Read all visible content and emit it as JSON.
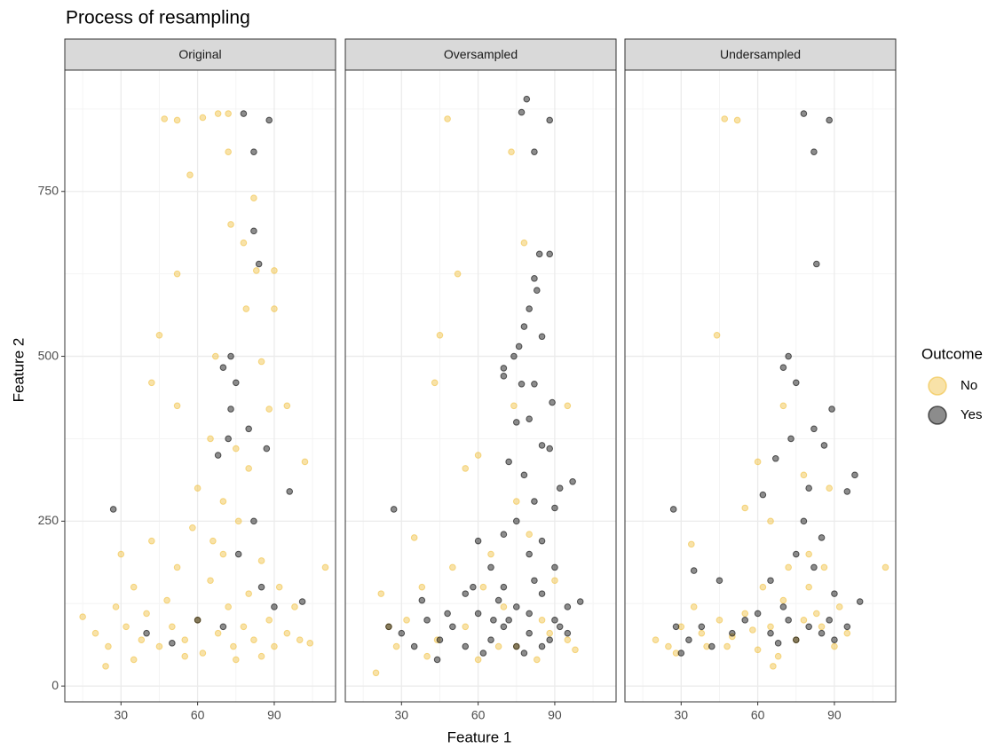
{
  "title": "Process of resampling",
  "x_label": "Feature 1",
  "y_label": "Feature 2",
  "legend_title": "Outcome",
  "chart_data": [
    {
      "type": "scatter",
      "title": "Original",
      "xlim": [
        8,
        114
      ],
      "ylim": [
        -24,
        934
      ],
      "xticks": [
        30,
        60,
        90
      ],
      "yticks": [
        0,
        250,
        500,
        750
      ],
      "grid": true,
      "series": [
        {
          "name": "No",
          "color": "#f0bf3d",
          "x": [
            47,
            52,
            62,
            68,
            72,
            72,
            57,
            73,
            82,
            78,
            83,
            90,
            52,
            79,
            90,
            45,
            42,
            85,
            67,
            95,
            88,
            52,
            65,
            75,
            80,
            60,
            70,
            102,
            110,
            15,
            20,
            25,
            28,
            30,
            32,
            35,
            38,
            40,
            42,
            45,
            48,
            50,
            52,
            55,
            58,
            60,
            62,
            65,
            68,
            70,
            72,
            74,
            76,
            78,
            80,
            82,
            85,
            88,
            90,
            92,
            95,
            98,
            100,
            104,
            35,
            55,
            75,
            85,
            24,
            66
          ],
          "y": [
            860,
            858,
            862,
            868,
            868,
            810,
            775,
            700,
            740,
            672,
            630,
            630,
            625,
            572,
            572,
            532,
            460,
            492,
            500,
            425,
            420,
            425,
            375,
            360,
            330,
            300,
            280,
            340,
            180,
            105,
            80,
            60,
            120,
            200,
            90,
            150,
            70,
            110,
            220,
            60,
            130,
            90,
            180,
            70,
            240,
            100,
            50,
            160,
            80,
            200,
            120,
            60,
            250,
            90,
            140,
            70,
            190,
            100,
            60,
            150,
            80,
            120,
            70,
            65,
            40,
            45,
            40,
            45,
            30,
            220
          ]
        },
        {
          "name": "Yes",
          "color": "#000000",
          "x": [
            78,
            88,
            82,
            82,
            84,
            73,
            70,
            75,
            73,
            80,
            72,
            87,
            96,
            27,
            68,
            76,
            85,
            60,
            40,
            90,
            101,
            82,
            50,
            70
          ],
          "y": [
            868,
            858,
            810,
            690,
            640,
            500,
            483,
            460,
            420,
            390,
            375,
            360,
            295,
            268,
            350,
            200,
            150,
            100,
            80,
            120,
            128,
            250,
            65,
            90
          ]
        }
      ]
    },
    {
      "type": "scatter",
      "title": "Oversampled",
      "xlim": [
        8,
        114
      ],
      "ylim": [
        -24,
        934
      ],
      "xticks": [
        30,
        60,
        90
      ],
      "yticks": [
        0,
        250,
        500,
        750
      ],
      "grid": true,
      "series": [
        {
          "name": "No",
          "color": "#f0bf3d",
          "x": [
            48,
            73,
            78,
            52,
            45,
            43,
            95,
            74,
            60,
            55,
            75,
            35,
            22,
            20,
            28,
            32,
            38,
            44,
            50,
            55,
            60,
            65,
            70,
            75,
            80,
            85,
            90,
            95,
            98,
            40,
            62,
            88,
            25,
            68,
            83
          ],
          "y": [
            860,
            810,
            672,
            625,
            532,
            460,
            425,
            425,
            350,
            330,
            280,
            225,
            140,
            20,
            60,
            100,
            150,
            70,
            180,
            90,
            40,
            200,
            120,
            60,
            230,
            100,
            160,
            70,
            55,
            45,
            150,
            80,
            90,
            60,
            40
          ]
        },
        {
          "name": "Yes",
          "color": "#000000",
          "x": [
            79,
            77,
            88,
            82,
            84,
            88,
            82,
            83,
            80,
            78,
            76,
            74,
            70,
            70,
            77,
            82,
            85,
            89,
            75,
            80,
            85,
            88,
            72,
            78,
            92,
            97,
            82,
            27,
            90,
            75,
            70,
            85,
            60,
            80,
            65,
            90,
            70,
            85,
            55,
            75,
            80,
            95,
            100,
            30,
            35,
            40,
            45,
            50,
            55,
            60,
            65,
            70,
            75,
            80,
            85,
            90,
            95,
            25,
            38,
            48,
            62,
            72,
            78,
            88,
            58,
            68,
            82,
            92,
            44,
            66
          ],
          "y": [
            890,
            870,
            858,
            810,
            655,
            655,
            618,
            600,
            572,
            545,
            515,
            500,
            482,
            470,
            458,
            458,
            530,
            430,
            400,
            405,
            365,
            360,
            340,
            320,
            300,
            310,
            280,
            268,
            270,
            250,
            230,
            220,
            220,
            200,
            180,
            180,
            150,
            140,
            140,
            120,
            110,
            120,
            128,
            80,
            60,
            100,
            70,
            90,
            60,
            110,
            70,
            90,
            60,
            80,
            60,
            100,
            80,
            90,
            130,
            110,
            50,
            100,
            50,
            70,
            150,
            130,
            160,
            90,
            40,
            100
          ]
        }
      ]
    },
    {
      "type": "scatter",
      "title": "Undersampled",
      "xlim": [
        8,
        114
      ],
      "ylim": [
        -24,
        934
      ],
      "xticks": [
        30,
        60,
        90
      ],
      "yticks": [
        0,
        250,
        500,
        750
      ],
      "grid": true,
      "series": [
        {
          "name": "No",
          "color": "#f0bf3d",
          "x": [
            47,
            52,
            44,
            70,
            78,
            60,
            88,
            65,
            55,
            34,
            80,
            110,
            20,
            25,
            30,
            35,
            40,
            45,
            50,
            55,
            60,
            65,
            70,
            75,
            80,
            85,
            90,
            95,
            28,
            38,
            68,
            83,
            72,
            92,
            62,
            86,
            48,
            58,
            78,
            66
          ],
          "y": [
            860,
            858,
            532,
            425,
            320,
            340,
            300,
            250,
            270,
            215,
            200,
            180,
            70,
            60,
            90,
            120,
            60,
            100,
            75,
            110,
            55,
            90,
            130,
            70,
            150,
            90,
            60,
            80,
            50,
            80,
            45,
            110,
            180,
            120,
            150,
            180,
            60,
            85,
            100,
            30
          ]
        },
        {
          "name": "Yes",
          "color": "#000000",
          "x": [
            78,
            88,
            82,
            83,
            72,
            70,
            75,
            89,
            73,
            82,
            86,
            95,
            98,
            80,
            27,
            67,
            62,
            85,
            75,
            78,
            65,
            82,
            70,
            90,
            35,
            45,
            60,
            28,
            33,
            38,
            42,
            50,
            55,
            65,
            72,
            75,
            80,
            85,
            90,
            95,
            100,
            68,
            88,
            30
          ],
          "y": [
            868,
            858,
            810,
            640,
            500,
            483,
            460,
            420,
            375,
            390,
            365,
            295,
            320,
            300,
            268,
            345,
            290,
            225,
            200,
            250,
            160,
            180,
            120,
            140,
            175,
            160,
            110,
            90,
            70,
            90,
            60,
            80,
            100,
            80,
            100,
            70,
            90,
            80,
            70,
            90,
            128,
            65,
            100,
            50
          ]
        }
      ]
    }
  ]
}
